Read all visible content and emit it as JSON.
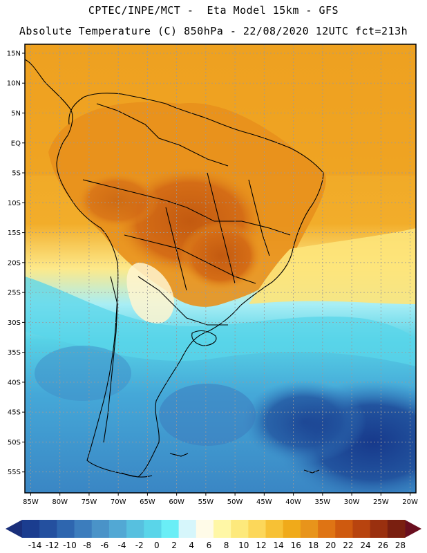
{
  "header": {
    "line1": "CPTEC/INPE/MCT -  Eta Model 15km - GFS",
    "line2": "Absolute Temperature (C) 850hPa - 22/08/2020 12UTC fct=213h"
  },
  "map": {
    "lat_ticks": [
      "15N",
      "10N",
      "5N",
      "EQ",
      "5S",
      "10S",
      "15S",
      "20S",
      "25S",
      "30S",
      "35S",
      "40S",
      "45S",
      "50S",
      "55S"
    ],
    "lon_ticks": [
      "85W",
      "80W",
      "75W",
      "70W",
      "65W",
      "60W",
      "55W",
      "50W",
      "45W",
      "40W",
      "35W",
      "30W",
      "25W",
      "20W"
    ],
    "lat_range": [
      -58.5,
      16.5
    ],
    "lon_range": [
      -86,
      -19
    ],
    "colors": {
      "hot_core": "#c35a10",
      "warm": "#e8951f",
      "orange": "#f0a51c",
      "yellow": "#fce36c",
      "cold_light": "#57d2e6",
      "cold_mid": "#3a8fcc",
      "cold_deep": "#1a4a99"
    }
  },
  "legend": {
    "labels": [
      "-14",
      "-12",
      "-10",
      "-8",
      "-6",
      "-4",
      "-2",
      "0",
      "2",
      "4",
      "6",
      "8",
      "10",
      "12",
      "14",
      "16",
      "18",
      "20",
      "22",
      "24",
      "26",
      "28"
    ],
    "colors": [
      "#1b3d8f",
      "#24509f",
      "#2e66af",
      "#3c7dbd",
      "#4a93c8",
      "#52a8d4",
      "#57c0df",
      "#5ad5e9",
      "#6aeef6",
      "#d6f6fb",
      "#fffbe8",
      "#fff7a6",
      "#fde97c",
      "#fcd75a",
      "#f7c135",
      "#f0aa1a",
      "#e8941b",
      "#df7414",
      "#cf5a0f",
      "#b8440f",
      "#9a300f",
      "#7a1f10"
    ],
    "low_arrow_color": "#1a2f7a",
    "high_arrow_color": "#6a0f1f"
  }
}
